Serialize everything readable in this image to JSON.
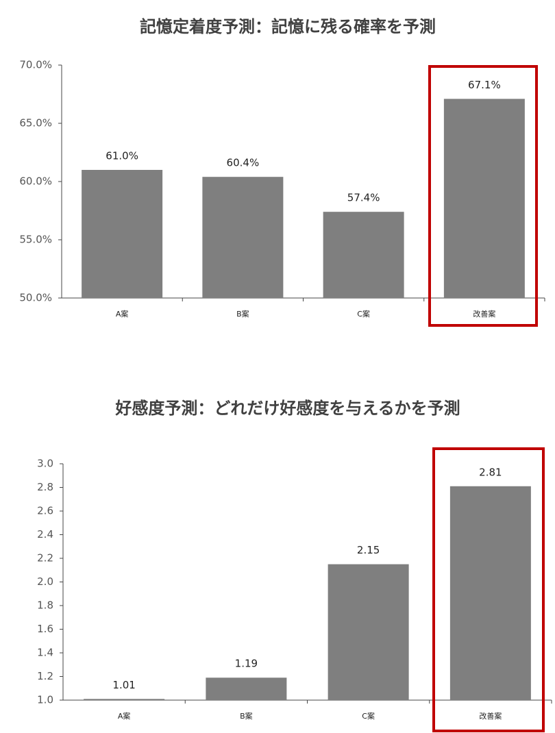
{
  "chart_data": [
    {
      "type": "bar",
      "title": "記憶定着度予測：記憶に残る確率を予測",
      "categories": [
        "A案",
        "B案",
        "C案",
        "改善案"
      ],
      "values": [
        61.0,
        60.4,
        57.4,
        67.1
      ],
      "value_labels": [
        "61.0%",
        "60.4%",
        "57.4%",
        "67.1%"
      ],
      "color": "#7f7f7f",
      "highlight": 3,
      "highlight_color": "#c00000",
      "ylim": [
        50,
        70
      ],
      "yticks": [
        {
          "value": 50,
          "label": "50.0%"
        },
        {
          "value": 55,
          "label": "55.0%"
        },
        {
          "value": 60,
          "label": "60.0%"
        },
        {
          "value": 65,
          "label": "65.0%"
        },
        {
          "value": 70,
          "label": "70.0%"
        }
      ],
      "grid": false
    },
    {
      "type": "bar",
      "title": "好感度予測：どれだけ好感度を与えるかを予測",
      "categories": [
        "A案",
        "B案",
        "C案",
        "改善案"
      ],
      "values": [
        1.01,
        1.19,
        2.15,
        2.81
      ],
      "color": "#7f7f7f",
      "highlight": 3,
      "highlight_color": "#c00000",
      "ylim": [
        1.0,
        3.0
      ],
      "yticks": [
        {
          "value": 1.0,
          "label": "1.0"
        },
        1.2,
        1.4,
        1.6,
        1.8,
        {
          "value": 2.0,
          "label": "2.0"
        },
        2.2,
        2.4,
        2.6,
        2.8,
        {
          "value": 3.0,
          "label": "3.0"
        }
      ],
      "grid": false
    }
  ]
}
